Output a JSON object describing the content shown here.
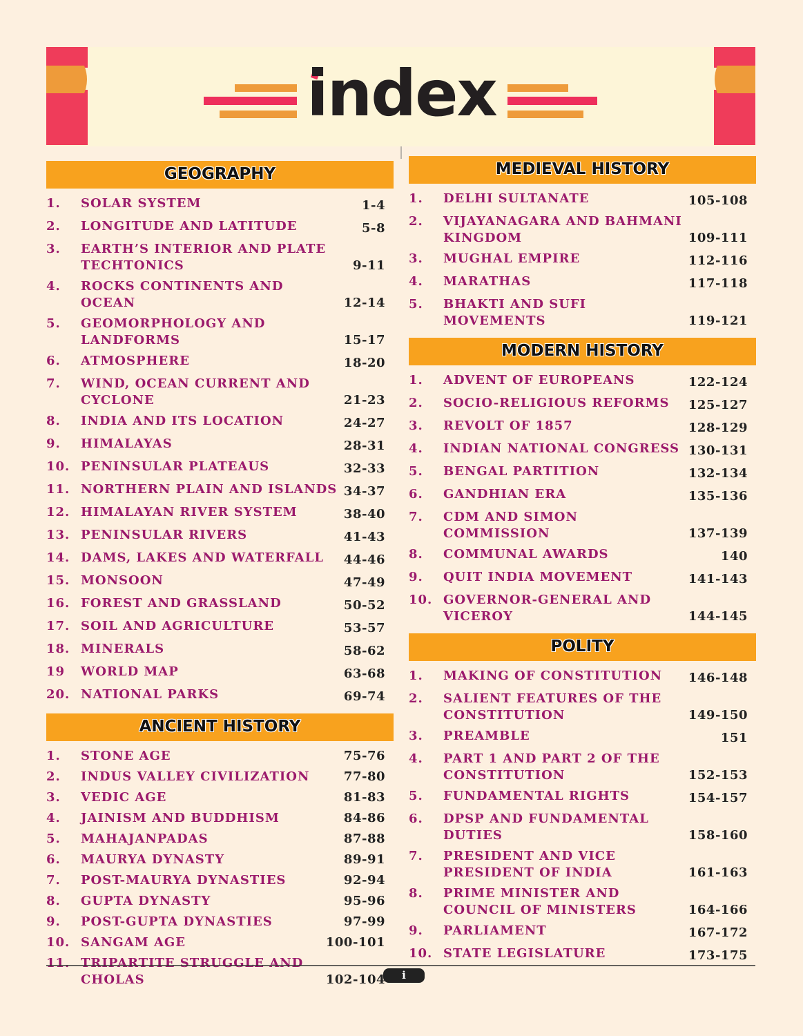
{
  "header": {
    "title": "index"
  },
  "sections": [
    {
      "title": "GEOGRAPHY",
      "entries": [
        [
          "1.",
          "SOLAR SYSTEM",
          "1-4"
        ],
        [
          "2.",
          "LONGITUDE AND LATITUDE",
          "5-8"
        ],
        [
          "3.",
          "EARTH’S INTERIOR AND PLATE TECHTONICS",
          "9-11"
        ],
        [
          "4.",
          "ROCKS CONTINENTS AND OCEAN",
          "12-14"
        ],
        [
          "5.",
          "GEOMORPHOLOGY AND LANDFORMS",
          "15-17"
        ],
        [
          "6.",
          "ATMOSPHERE",
          "18-20"
        ],
        [
          "7.",
          "WIND, OCEAN CURRENT AND CYCLONE",
          "21-23"
        ],
        [
          "8.",
          "INDIA AND ITS LOCATION",
          "24-27"
        ],
        [
          "9.",
          "HIMALAYAS",
          "28-31"
        ],
        [
          "10.",
          "PENINSULAR PLATEAUS",
          "32-33"
        ],
        [
          "11.",
          "NORTHERN PLAIN AND ISLANDS",
          "34-37"
        ],
        [
          "12.",
          "HIMALAYAN RIVER SYSTEM",
          "38-40"
        ],
        [
          "13.",
          "PENINSULAR RIVERS",
          "41-43"
        ],
        [
          "14.",
          "DAMS, LAKES AND WATERFALL",
          "44-46"
        ],
        [
          "15.",
          "MONSOON",
          "47-49"
        ],
        [
          "16.",
          "FOREST AND GRASSLAND",
          "50-52"
        ],
        [
          "17.",
          "SOIL AND AGRICULTURE",
          "53-57"
        ],
        [
          "18.",
          "MINERALS",
          "58-62"
        ],
        [
          "19",
          "WORLD MAP",
          "63-68"
        ],
        [
          "20.",
          "NATIONAL PARKS",
          "69-74"
        ]
      ]
    },
    {
      "title": "ANCIENT HISTORY",
      "entries": [
        [
          "1.",
          "STONE AGE",
          "75-76"
        ],
        [
          "2.",
          "INDUS VALLEY CIVILIZATION",
          "77-80"
        ],
        [
          "3.",
          "VEDIC AGE",
          "81-83"
        ],
        [
          "4.",
          "JAINISM AND BUDDHISM",
          "84-86"
        ],
        [
          "5.",
          "MAHAJANPADAS",
          "87-88"
        ],
        [
          "6.",
          "MAURYA DYNASTY",
          "89-91"
        ],
        [
          "7.",
          "POST-MAURYA DYNASTIES",
          "92-94"
        ],
        [
          "8.",
          "GUPTA DYNASTY",
          "95-96"
        ],
        [
          "9.",
          "POST-GUPTA DYNASTIES",
          "97-99"
        ],
        [
          "10.",
          "SANGAM AGE",
          "100-101"
        ],
        [
          "11.",
          "TRIPARTITE STRUGGLE AND CHOLAS",
          "102-104"
        ]
      ]
    },
    {
      "title": "MEDIEVAL HISTORY",
      "entries": [
        [
          "1.",
          "DELHI SULTANATE",
          "105-108"
        ],
        [
          "2.",
          "VIJAYANAGARA AND BAHMANI KINGDOM",
          "109-111"
        ],
        [
          "3.",
          "MUGHAL EMPIRE",
          "112-116"
        ],
        [
          "4.",
          "MARATHAS",
          "117-118"
        ],
        [
          "5.",
          "BHAKTI AND SUFI MOVEMENTS",
          "119-121"
        ]
      ]
    },
    {
      "title": "MODERN HISTORY",
      "entries": [
        [
          "1.",
          "ADVENT OF EUROPEANS",
          "122-124"
        ],
        [
          "2.",
          "SOCIO-RELIGIOUS REFORMS",
          "125-127"
        ],
        [
          "3.",
          "REVOLT OF 1857",
          "128-129"
        ],
        [
          "4.",
          "INDIAN NATIONAL CONGRESS",
          "130-131"
        ],
        [
          "5.",
          "BENGAL PARTITION",
          "132-134"
        ],
        [
          "6.",
          "GANDHIAN ERA",
          "135-136"
        ],
        [
          "7.",
          "CDM AND SIMON COMMISSION",
          "137-139"
        ],
        [
          "8.",
          "COMMUNAL AWARDS",
          "140"
        ],
        [
          "9.",
          "QUIT INDIA MOVEMENT",
          "141-143"
        ],
        [
          "10.",
          "GOVERNOR-GENERAL AND VICEROY",
          "144-145"
        ]
      ]
    },
    {
      "title": "POLITY",
      "entries": [
        [
          "1.",
          "MAKING OF CONSTITUTION",
          "146-148"
        ],
        [
          "2.",
          "SALIENT FEATURES OF THE CONSTITUTION",
          "149-150"
        ],
        [
          "3.",
          "PREAMBLE",
          "151"
        ],
        [
          "4.",
          "PART 1 AND PART 2 OF THE CONSTITUTION",
          "152-153"
        ],
        [
          "5.",
          "FUNDAMENTAL RIGHTS",
          "154-157"
        ],
        [
          "6.",
          "DPSP AND FUNDAMENTAL DUTIES",
          "158-160"
        ],
        [
          "7.",
          "PRESIDENT AND VICE PRESIDENT OF INDIA",
          "161-163"
        ],
        [
          "8.",
          "PRIME MINISTER AND COUNCIL OF MINISTERS",
          "164-166"
        ],
        [
          "9.",
          "PARLIAMENT",
          "167-172"
        ],
        [
          "10.",
          "STATE LEGISLATURE",
          "173-175"
        ]
      ]
    }
  ],
  "footer": {
    "page": "i"
  }
}
